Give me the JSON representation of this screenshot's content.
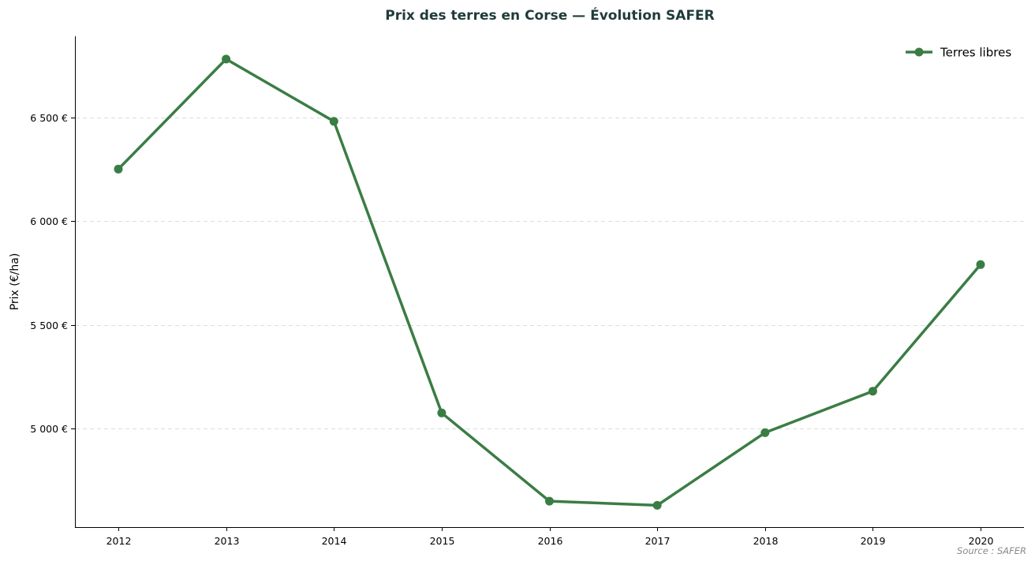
{
  "chart_data": {
    "type": "line",
    "title": "Prix des terres en Corse — Évolution SAFER",
    "xlabel": "",
    "ylabel": "Prix (€/ha)",
    "categories": [
      "2012",
      "2013",
      "2014",
      "2015",
      "2016",
      "2017",
      "2018",
      "2019",
      "2020"
    ],
    "series": [
      {
        "name": "Terres libres",
        "values": [
          6250,
          6780,
          6480,
          5075,
          4650,
          4630,
          4980,
          5180,
          5790
        ]
      }
    ],
    "ylim": [
      4525,
      6890
    ],
    "yticks": [
      5000,
      5500,
      6000,
      6500
    ],
    "ytick_labels": [
      "5 000 €",
      "5 500 €",
      "6 000 €",
      "6 500 €"
    ],
    "grid": "horizontal dashed",
    "legend_position": "top-right",
    "source_note": "Source : SAFER",
    "colors": {
      "line": "#3a7d44",
      "title": "#1f3b3a",
      "grid": "#dddddd",
      "axis": "#000000",
      "source": "#8a8a8a"
    }
  }
}
